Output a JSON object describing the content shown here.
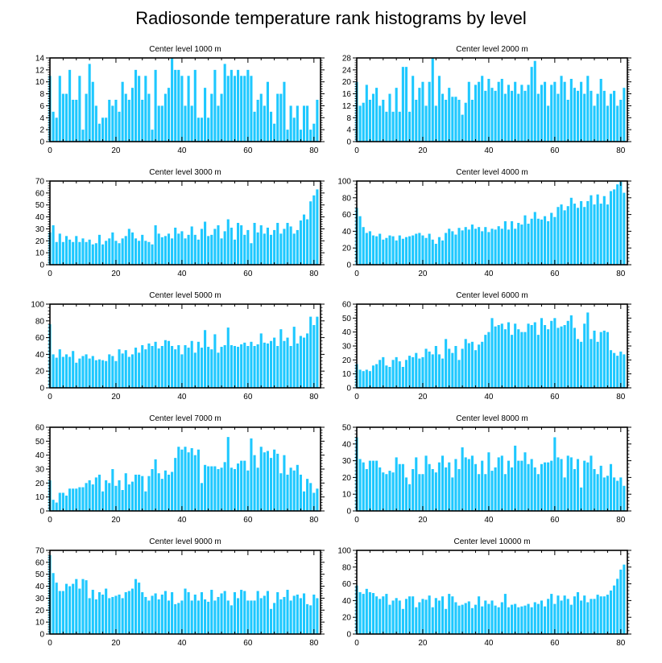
{
  "title": "Radiosonde temperature rank histograms by level",
  "colors": {
    "bar": "#1EC8FF",
    "axis": "#000000",
    "background": "#FFFFFF"
  },
  "chart_data": [
    {
      "type": "bar",
      "title": "Center level 1000 m",
      "xlim": [
        0,
        82
      ],
      "ylim": [
        0,
        14
      ],
      "yticks": [
        0,
        2,
        4,
        6,
        8,
        10,
        12,
        14
      ],
      "xticks": [
        0,
        20,
        40,
        60,
        80
      ],
      "values": [
        11,
        5,
        4,
        11,
        8,
        8,
        12,
        7,
        7,
        11,
        2,
        8,
        13,
        10,
        6,
        3,
        4,
        4,
        7,
        6,
        7,
        5,
        10,
        8,
        7,
        9,
        12,
        11,
        7,
        11,
        8,
        2,
        12,
        6,
        6,
        8,
        9,
        14,
        12,
        12,
        11,
        6,
        11,
        6,
        12,
        4,
        4,
        9,
        4,
        8,
        12,
        6,
        8,
        13,
        11,
        12,
        11,
        12,
        11,
        11,
        12,
        11,
        5,
        7,
        8,
        6,
        10,
        5,
        3,
        8,
        8,
        10,
        2,
        6,
        4,
        6,
        2,
        6,
        6,
        2,
        3,
        7
      ]
    },
    {
      "type": "bar",
      "title": "Center level 2000 m",
      "xlim": [
        0,
        82
      ],
      "ylim": [
        0,
        28
      ],
      "yticks": [
        0,
        4,
        8,
        12,
        16,
        20,
        24,
        28
      ],
      "xticks": [
        0,
        20,
        40,
        60,
        80
      ],
      "values": [
        20,
        12,
        13,
        19,
        14,
        16,
        18,
        12,
        14,
        10,
        16,
        10,
        18,
        10,
        25,
        25,
        10,
        22,
        14,
        18,
        20,
        12,
        20,
        28,
        12,
        22,
        16,
        14,
        18,
        15,
        15,
        14,
        9,
        13,
        20,
        14,
        19,
        20,
        22,
        17,
        21,
        18,
        17,
        20,
        21,
        16,
        19,
        17,
        20,
        16,
        19,
        17,
        19,
        25,
        27,
        16,
        19,
        20,
        12,
        19,
        20,
        16,
        22,
        20,
        14,
        21,
        18,
        17,
        20,
        16,
        22,
        17,
        12,
        16,
        21,
        17,
        12,
        16,
        17,
        12,
        14,
        18
      ]
    },
    {
      "type": "bar",
      "title": "Center level 3000 m",
      "xlim": [
        0,
        82
      ],
      "ylim": [
        0,
        70
      ],
      "yticks": [
        0,
        10,
        20,
        30,
        40,
        50,
        60,
        70
      ],
      "xticks": [
        0,
        20,
        40,
        60,
        80
      ],
      "values": [
        27,
        33,
        19,
        26,
        19,
        24,
        21,
        19,
        24,
        19,
        22,
        19,
        21,
        17,
        18,
        25,
        17,
        20,
        22,
        27,
        20,
        18,
        22,
        24,
        30,
        27,
        22,
        20,
        25,
        20,
        19,
        17,
        33,
        26,
        23,
        24,
        26,
        22,
        31,
        26,
        28,
        22,
        25,
        32,
        25,
        21,
        30,
        36,
        24,
        25,
        30,
        33,
        22,
        28,
        38,
        31,
        21,
        35,
        33,
        25,
        29,
        18,
        35,
        27,
        33,
        26,
        31,
        25,
        29,
        35,
        26,
        30,
        35,
        32,
        26,
        29,
        37,
        42,
        38,
        53,
        58,
        63
      ]
    },
    {
      "type": "bar",
      "title": "Center level 4000 m",
      "xlim": [
        0,
        82
      ],
      "ylim": [
        0,
        100
      ],
      "yticks": [
        0,
        20,
        40,
        60,
        80,
        100
      ],
      "xticks": [
        0,
        20,
        40,
        60,
        80
      ],
      "values": [
        68,
        58,
        45,
        38,
        40,
        35,
        34,
        37,
        30,
        32,
        35,
        34,
        29,
        35,
        31,
        33,
        34,
        35,
        37,
        38,
        35,
        32,
        37,
        30,
        25,
        33,
        29,
        38,
        43,
        40,
        36,
        44,
        41,
        45,
        42,
        48,
        43,
        45,
        40,
        45,
        39,
        43,
        42,
        46,
        43,
        52,
        42,
        52,
        43,
        50,
        48,
        59,
        49,
        55,
        63,
        55,
        54,
        58,
        52,
        62,
        57,
        69,
        72,
        65,
        70,
        80,
        73,
        68,
        76,
        69,
        76,
        83,
        72,
        84,
        73,
        82,
        72,
        88,
        90,
        96,
        99,
        86
      ]
    },
    {
      "type": "bar",
      "title": "Center level 5000 m",
      "xlim": [
        0,
        82
      ],
      "ylim": [
        0,
        100
      ],
      "yticks": [
        0,
        20,
        40,
        60,
        80,
        100
      ],
      "xticks": [
        0,
        20,
        40,
        60,
        80
      ],
      "values": [
        76,
        40,
        36,
        46,
        37,
        40,
        37,
        44,
        30,
        35,
        38,
        40,
        35,
        38,
        33,
        34,
        33,
        32,
        40,
        38,
        32,
        46,
        41,
        45,
        37,
        40,
        48,
        42,
        51,
        46,
        53,
        50,
        55,
        47,
        50,
        57,
        56,
        50,
        46,
        51,
        40,
        51,
        48,
        56,
        42,
        55,
        48,
        69,
        49,
        46,
        64,
        42,
        49,
        51,
        72,
        51,
        50,
        49,
        52,
        54,
        50,
        55,
        50,
        52,
        65,
        54,
        53,
        56,
        60,
        50,
        70,
        56,
        60,
        50,
        73,
        53,
        62,
        60,
        65,
        85,
        75,
        85
      ]
    },
    {
      "type": "bar",
      "title": "Center level 6000 m",
      "xlim": [
        0,
        82
      ],
      "ylim": [
        0,
        60
      ],
      "yticks": [
        0,
        10,
        20,
        30,
        40,
        50,
        60
      ],
      "xticks": [
        0,
        20,
        40,
        60,
        80
      ],
      "values": [
        17,
        13,
        12,
        13,
        12,
        16,
        17,
        20,
        22,
        16,
        15,
        20,
        22,
        19,
        15,
        20,
        23,
        22,
        25,
        21,
        22,
        28,
        26,
        24,
        30,
        24,
        21,
        35,
        28,
        25,
        30,
        20,
        28,
        35,
        32,
        33,
        27,
        31,
        33,
        38,
        40,
        50,
        44,
        45,
        46,
        42,
        47,
        38,
        46,
        42,
        40,
        40,
        46,
        45,
        47,
        38,
        50,
        45,
        42,
        48,
        50,
        43,
        44,
        45,
        48,
        52,
        43,
        35,
        33,
        46,
        54,
        35,
        41,
        33,
        40,
        41,
        40,
        27,
        25,
        23,
        26,
        24
      ]
    },
    {
      "type": "bar",
      "title": "Center level 7000 m",
      "xlim": [
        0,
        82
      ],
      "ylim": [
        0,
        60
      ],
      "yticks": [
        0,
        10,
        20,
        30,
        40,
        50,
        60
      ],
      "xticks": [
        0,
        20,
        40,
        60,
        80
      ],
      "values": [
        22,
        8,
        6,
        13,
        13,
        11,
        16,
        16,
        16,
        17,
        17,
        20,
        22,
        19,
        24,
        26,
        14,
        22,
        20,
        30,
        18,
        22,
        15,
        27,
        19,
        21,
        26,
        26,
        25,
        14,
        25,
        30,
        37,
        27,
        23,
        29,
        26,
        28,
        38,
        46,
        44,
        46,
        42,
        45,
        40,
        44,
        20,
        33,
        32,
        32,
        32,
        30,
        31,
        35,
        53,
        31,
        30,
        34,
        36,
        36,
        29,
        52,
        40,
        31,
        46,
        42,
        43,
        38,
        44,
        41,
        27,
        40,
        26,
        31,
        29,
        33,
        26,
        14,
        23,
        20,
        13,
        16
      ]
    },
    {
      "type": "bar",
      "title": "Center level 8000 m",
      "xlim": [
        0,
        82
      ],
      "ylim": [
        0,
        50
      ],
      "yticks": [
        0,
        10,
        20,
        30,
        40,
        50
      ],
      "xticks": [
        0,
        20,
        40,
        60,
        80
      ],
      "values": [
        44,
        31,
        29,
        25,
        30,
        30,
        30,
        26,
        23,
        22,
        24,
        23,
        32,
        28,
        28,
        20,
        16,
        25,
        32,
        22,
        22,
        33,
        28,
        25,
        23,
        29,
        33,
        26,
        29,
        20,
        31,
        25,
        38,
        32,
        31,
        33,
        28,
        22,
        30,
        22,
        35,
        24,
        26,
        32,
        33,
        22,
        30,
        26,
        39,
        30,
        30,
        35,
        28,
        31,
        26,
        22,
        28,
        29,
        29,
        30,
        44,
        32,
        31,
        20,
        33,
        32,
        25,
        31,
        14,
        30,
        29,
        33,
        25,
        22,
        27,
        20,
        21,
        28,
        20,
        18,
        20,
        15
      ]
    },
    {
      "type": "bar",
      "title": "Center level 9000 m",
      "xlim": [
        0,
        82
      ],
      "ylim": [
        0,
        70
      ],
      "yticks": [
        0,
        10,
        20,
        30,
        40,
        50,
        60,
        70
      ],
      "xticks": [
        0,
        20,
        40,
        60,
        80
      ],
      "values": [
        66,
        51,
        43,
        36,
        36,
        42,
        40,
        42,
        46,
        38,
        46,
        45,
        30,
        37,
        29,
        35,
        33,
        38,
        30,
        31,
        32,
        33,
        30,
        35,
        36,
        38,
        46,
        43,
        35,
        31,
        28,
        32,
        34,
        29,
        33,
        36,
        28,
        35,
        25,
        26,
        28,
        38,
        35,
        28,
        33,
        28,
        35,
        29,
        27,
        37,
        28,
        31,
        34,
        36,
        28,
        24,
        35,
        30,
        37,
        36,
        28,
        28,
        28,
        36,
        30,
        32,
        36,
        21,
        26,
        35,
        29,
        31,
        37,
        28,
        32,
        33,
        30,
        34,
        25,
        24,
        33,
        30
      ]
    },
    {
      "type": "bar",
      "title": "Center level 10000 m",
      "xlim": [
        0,
        82
      ],
      "ylim": [
        0,
        100
      ],
      "yticks": [
        0,
        20,
        40,
        60,
        80,
        100
      ],
      "xticks": [
        0,
        20,
        40,
        60,
        80
      ],
      "values": [
        58,
        50,
        48,
        54,
        50,
        49,
        45,
        42,
        45,
        48,
        35,
        40,
        43,
        40,
        30,
        42,
        45,
        45,
        32,
        38,
        42,
        41,
        46,
        32,
        43,
        40,
        45,
        30,
        48,
        45,
        38,
        34,
        35,
        37,
        39,
        31,
        35,
        45,
        33,
        40,
        36,
        40,
        34,
        32,
        38,
        48,
        32,
        35,
        36,
        32,
        33,
        34,
        36,
        32,
        38,
        36,
        40,
        33,
        42,
        48,
        36,
        46,
        40,
        46,
        42,
        35,
        45,
        50,
        40,
        46,
        38,
        42,
        42,
        47,
        45,
        45,
        47,
        52,
        58,
        66,
        77,
        83
      ]
    }
  ]
}
